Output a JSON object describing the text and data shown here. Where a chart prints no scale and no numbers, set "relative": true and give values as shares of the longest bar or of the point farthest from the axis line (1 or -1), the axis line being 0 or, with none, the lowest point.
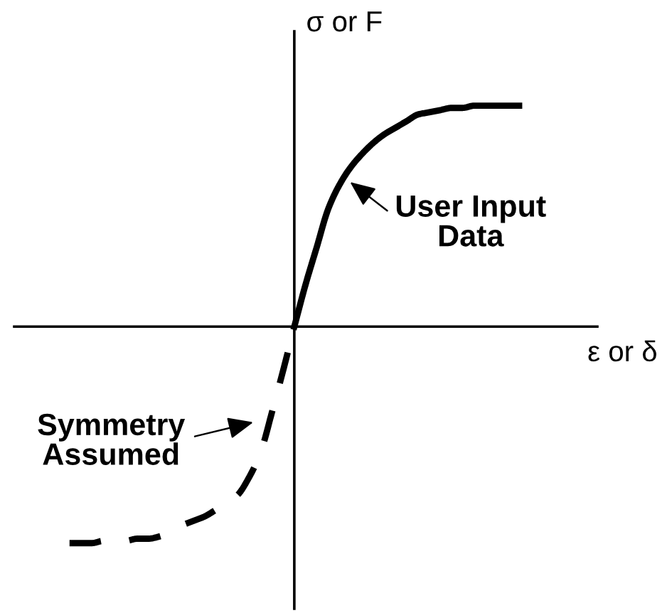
{
  "chart_data": {
    "type": "line",
    "relative": true,
    "xlabel": "ε or δ",
    "ylabel": "σ or F",
    "categories": [
      null,
      null,
      null,
      null,
      null,
      null,
      null,
      null,
      null,
      null,
      null,
      null,
      null,
      null,
      null,
      null,
      null,
      null,
      null,
      null,
      null,
      null,
      null,
      null,
      null,
      null,
      null,
      null,
      null,
      null,
      null,
      null,
      null,
      null,
      null,
      null,
      null,
      null,
      null,
      null,
      null
    ],
    "series": [
      {
        "color": "#000000",
        "line_style": "solid",
        "values": [
          null,
          null,
          null,
          null,
          null,
          null,
          null,
          null,
          null,
          null,
          null,
          null,
          null,
          null,
          null,
          null,
          null,
          null,
          null,
          null,
          0,
          0.19,
          0.36,
          0.53,
          0.64,
          0.72,
          0.78,
          0.83,
          0.87,
          0.9,
          0.93,
          0.96,
          0.97,
          0.98,
          0.99,
          0.99,
          1.0,
          1.0,
          1.0,
          1.0,
          1.0
        ]
      },
      {
        "color": "#000000",
        "line_style": "dashed",
        "values": [
          -0.98,
          -0.98,
          -0.98,
          -0.97,
          -0.97,
          -0.97,
          -0.96,
          -0.96,
          -0.95,
          -0.93,
          -0.9,
          -0.88,
          -0.86,
          -0.83,
          -0.8,
          -0.76,
          -0.68,
          -0.57,
          -0.39,
          -0.2,
          0,
          null,
          null,
          null,
          null,
          null,
          null,
          null,
          null,
          null,
          null,
          null,
          null,
          null,
          null,
          null,
          null,
          null,
          null,
          null,
          null
        ]
      }
    ],
    "annotations": [
      "User Input\nData",
      "Symmetry\nAssumed"
    ]
  }
}
